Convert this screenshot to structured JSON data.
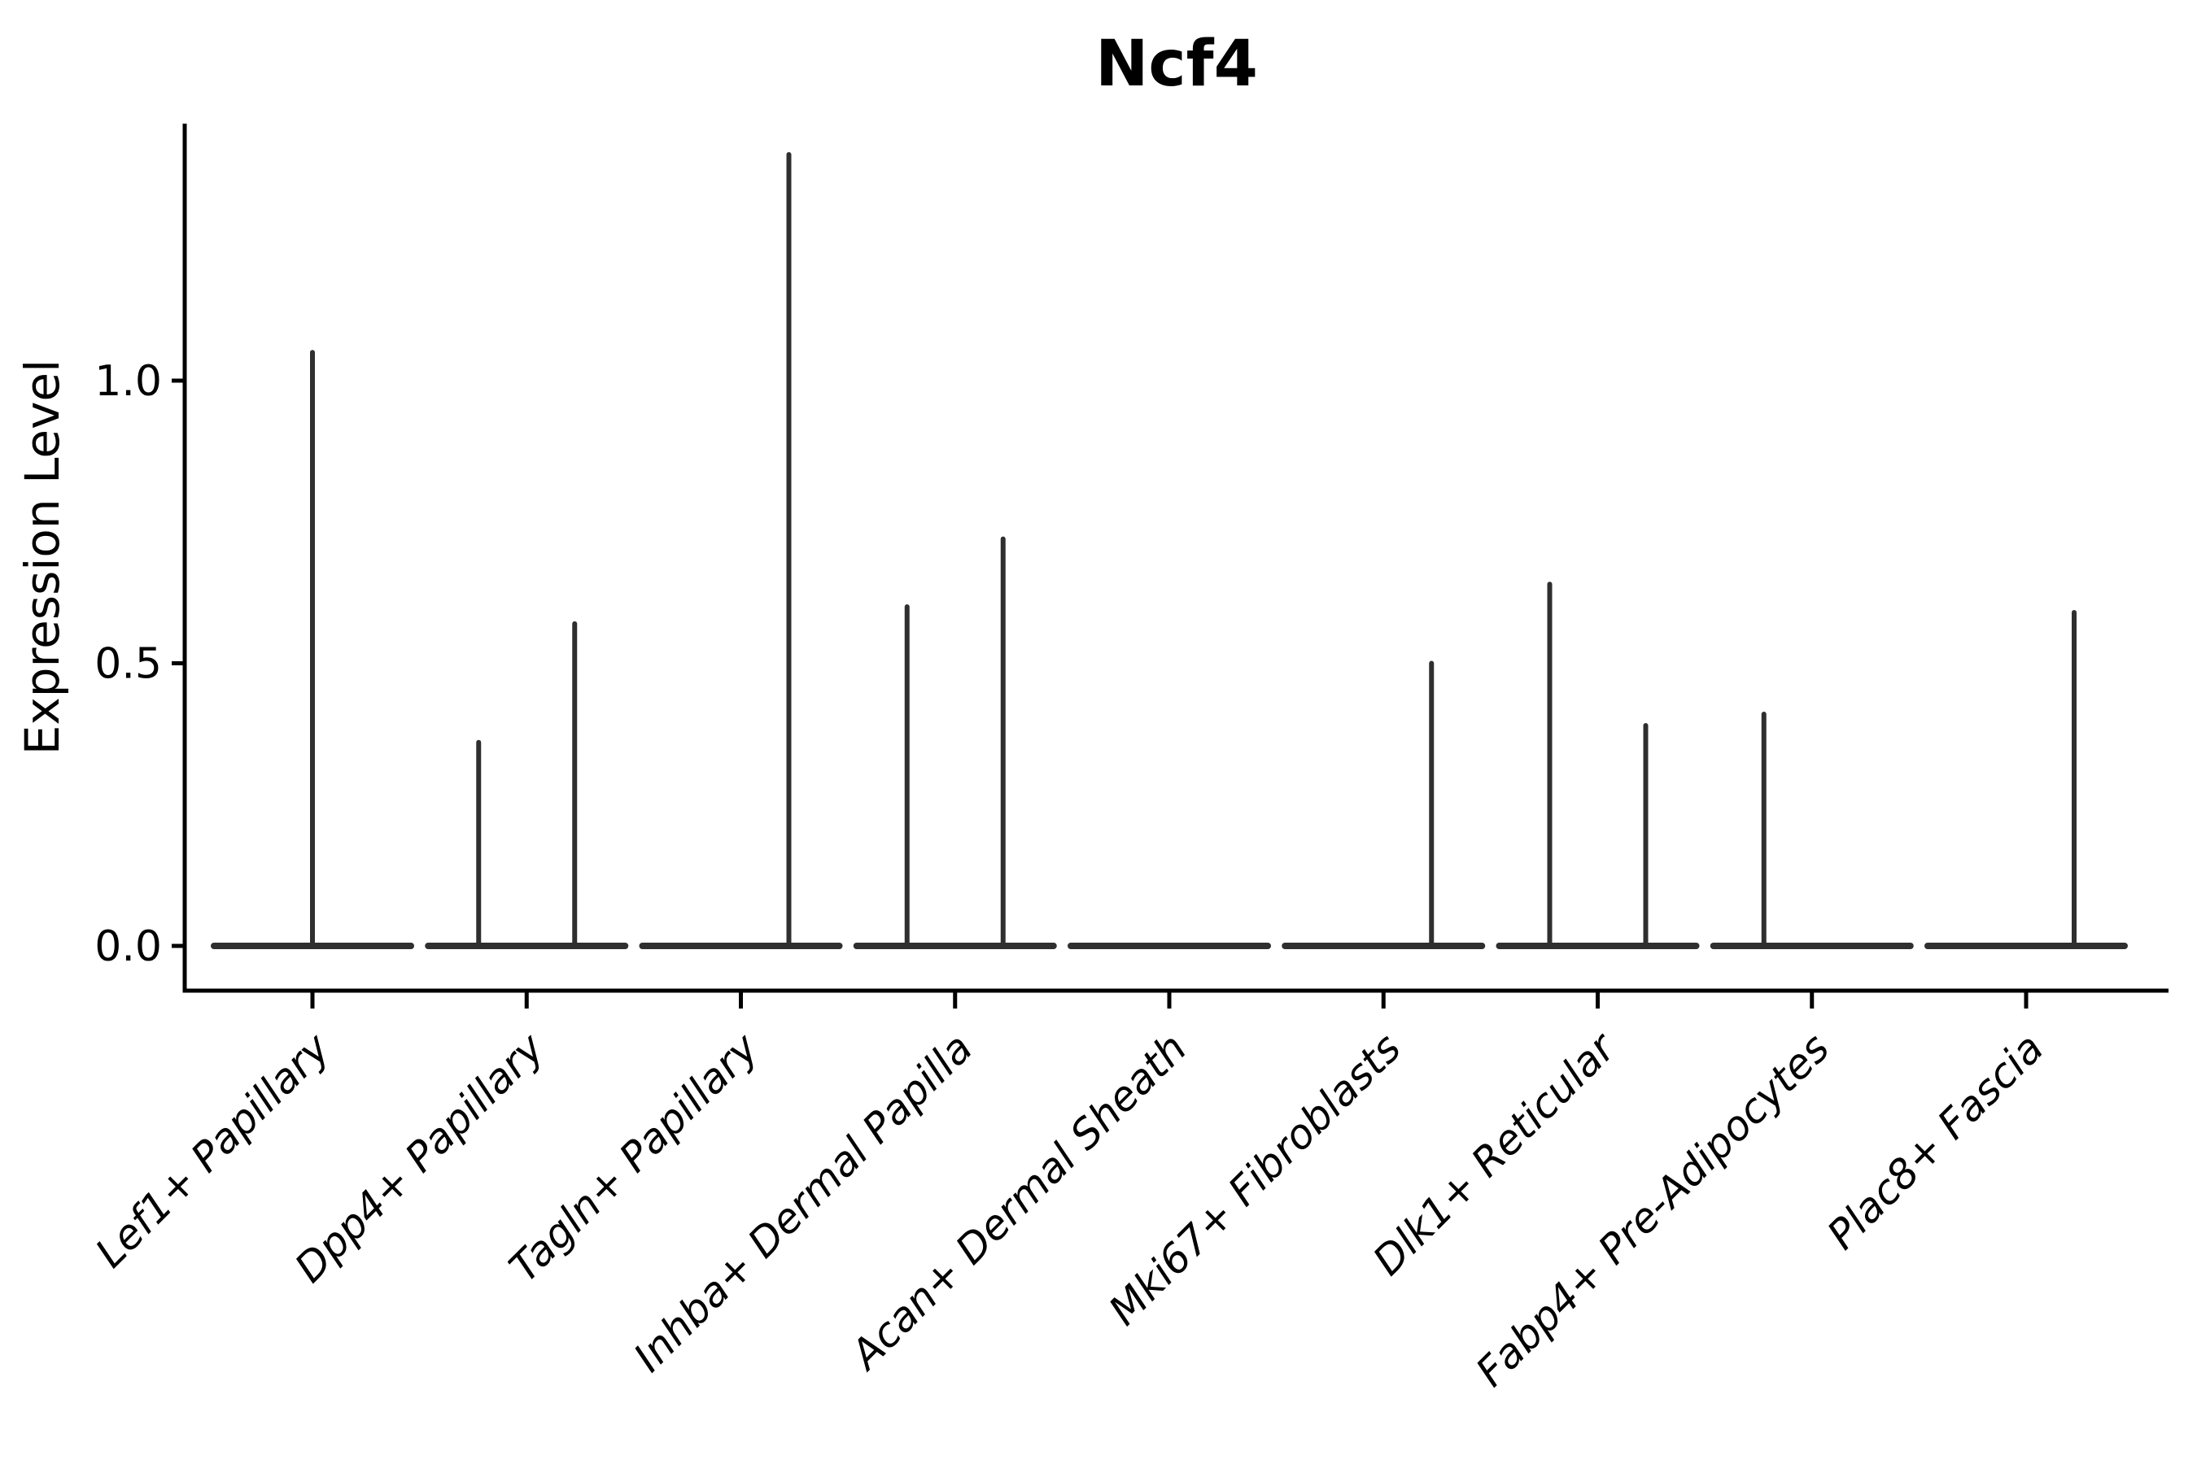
{
  "figure": {
    "background": "#ffffff",
    "ink_color": "#2f2f2f",
    "axis_color": "#000000"
  },
  "chart_data": {
    "type": "violin",
    "title": "Ncf4",
    "xlabel": "",
    "ylabel": "Expression Level",
    "grid": false,
    "legend": "none",
    "ylim": [
      -0.08,
      1.455
    ],
    "yticks": [
      {
        "value": 0.0,
        "label": "0.0"
      },
      {
        "value": 0.5,
        "label": "0.5"
      },
      {
        "value": 1.0,
        "label": "1.0"
      }
    ],
    "categories": [
      "Lef1+ Papillary",
      "Dpp4+ Papillary",
      "Tagln+ Papillary",
      "Inhba+ Dermal Papilla",
      "Acan+ Dermal Sheath",
      "Mki67+ Fibroblasts",
      "Dlk1+ Reticular",
      "Fabp4+ Pre-Adipocytes",
      "Plac8+ Fascia"
    ],
    "violins": [
      {
        "parts": [
          {
            "pos": "center",
            "max": 1.05
          }
        ]
      },
      {
        "parts": [
          {
            "pos": "left",
            "max": 0.36
          },
          {
            "pos": "right",
            "max": 0.57
          }
        ]
      },
      {
        "parts": [
          {
            "pos": "left",
            "max": 0.0
          },
          {
            "pos": "right",
            "max": 1.4
          }
        ]
      },
      {
        "parts": [
          {
            "pos": "left",
            "max": 0.6
          },
          {
            "pos": "right",
            "max": 0.72
          }
        ]
      },
      {
        "parts": [
          {
            "pos": "center",
            "max": 0.0
          }
        ]
      },
      {
        "parts": [
          {
            "pos": "left",
            "max": 0.0
          },
          {
            "pos": "right",
            "max": 0.5
          }
        ]
      },
      {
        "parts": [
          {
            "pos": "left",
            "max": 0.64
          },
          {
            "pos": "right",
            "max": 0.39
          }
        ]
      },
      {
        "parts": [
          {
            "pos": "left",
            "max": 0.41
          },
          {
            "pos": "right",
            "max": 0.0
          }
        ]
      },
      {
        "parts": [
          {
            "pos": "left",
            "max": 0.0
          },
          {
            "pos": "right",
            "max": 0.59
          }
        ]
      }
    ],
    "description": "Violin plot of gene expression; each cell type shows a flat zero-density base with a thin spike up to its maximum expression value."
  }
}
